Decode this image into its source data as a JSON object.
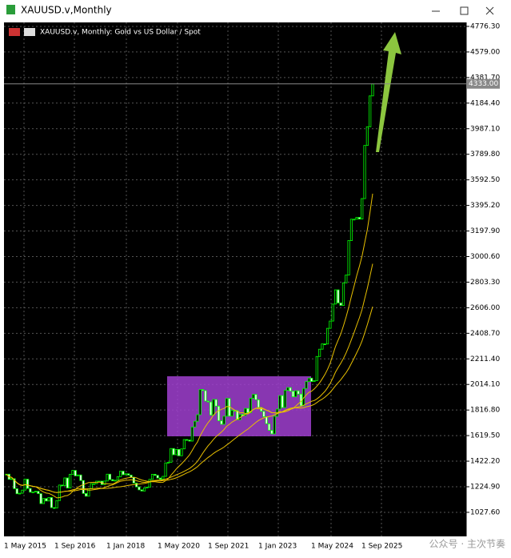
{
  "window": {
    "title": "XAUUSD.v,Monthly"
  },
  "watermark": "公众号 · 主次节奏",
  "chart_data": {
    "type": "candlestick",
    "title": "XAUUSD.v, Monthly:  Gold vs US Dollar / Spot",
    "values": [
      1322,
      1282,
      1287,
      1210,
      1171,
      1175,
      1199,
      1283,
      1212,
      1183,
      1184,
      1190,
      1172,
      1095,
      1134,
      1115,
      1142,
      1064,
      1061,
      1118,
      1238,
      1234,
      1293,
      1215,
      1321,
      1351,
      1309,
      1316,
      1273,
      1173,
      1152,
      1210,
      1249,
      1249,
      1268,
      1268,
      1242,
      1269,
      1322,
      1280,
      1271,
      1275,
      1303,
      1345,
      1318,
      1325,
      1315,
      1298,
      1253,
      1224,
      1201,
      1192,
      1215,
      1222,
      1282,
      1321,
      1313,
      1292,
      1283,
      1305,
      1409,
      1413,
      1520,
      1472,
      1513,
      1464,
      1517,
      1589,
      1585,
      1577,
      1686,
      1730,
      1781,
      1975,
      1967,
      1886,
      1879,
      1777,
      1898,
      1847,
      1734,
      1707,
      1769,
      1906,
      1770,
      1814,
      1813,
      1742,
      1783,
      1774,
      1829,
      1796,
      1908,
      1937,
      1896,
      1837,
      1807,
      1765,
      1711,
      1660,
      1633,
      1768,
      1824,
      1928,
      1836,
      1969,
      1990,
      1962,
      1919,
      1965,
      1940,
      1849,
      1983,
      2036,
      2063,
      2037,
      2044,
      2230,
      2286,
      2327,
      2326,
      2447,
      2503,
      2634,
      2744,
      2643,
      2624,
      2798,
      2858,
      3124,
      3289,
      3289,
      3303,
      3290,
      3448,
      3858,
      4002,
      4240,
      4333
    ],
    "up_color": "#00ff00",
    "down_color": "#ffffff",
    "ma_color": "#e8c000",
    "x_labels": [
      "1 May 2015",
      "1 Sep 2016",
      "1 Jan 2018",
      "1 May 2020",
      "1 Sep 2021",
      "1 Jan 2023",
      "1 May 2024",
      "1 Sep 2025"
    ],
    "ylim": [
      842,
      4807
    ],
    "yticks": [
      {
        "value": 4776.3,
        "label": "4776.30"
      },
      {
        "value": 4579,
        "label": "4579.00"
      },
      {
        "value": 4381.7,
        "label": "4381.70"
      },
      {
        "value": 4184.4,
        "label": "4184.40"
      },
      {
        "value": 3987.1,
        "label": "3987.10"
      },
      {
        "value": 3789.8,
        "label": "3789.80"
      },
      {
        "value": 3592.5,
        "label": "3592.50"
      },
      {
        "value": 3395.2,
        "label": "3395.20"
      },
      {
        "value": 3197.9,
        "label": "3197.90"
      },
      {
        "value": 3000.6,
        "label": "3000.60"
      },
      {
        "value": 2803.3,
        "label": "2803.30"
      },
      {
        "value": 2606,
        "label": "2606.00"
      },
      {
        "value": 2408.7,
        "label": "2408.70"
      },
      {
        "value": 2211.4,
        "label": "2211.40"
      },
      {
        "value": 2014.1,
        "label": "2014.10"
      },
      {
        "value": 1816.8,
        "label": "1816.80"
      },
      {
        "value": 1619.5,
        "label": "1619.50"
      },
      {
        "value": 1422.2,
        "label": "1422.20"
      },
      {
        "value": 1224.9,
        "label": "1224.90"
      },
      {
        "value": 1027.6,
        "label": "1027.60"
      }
    ],
    "grid": true,
    "current_price": {
      "value": 4333,
      "label": "4333.00"
    }
  }
}
